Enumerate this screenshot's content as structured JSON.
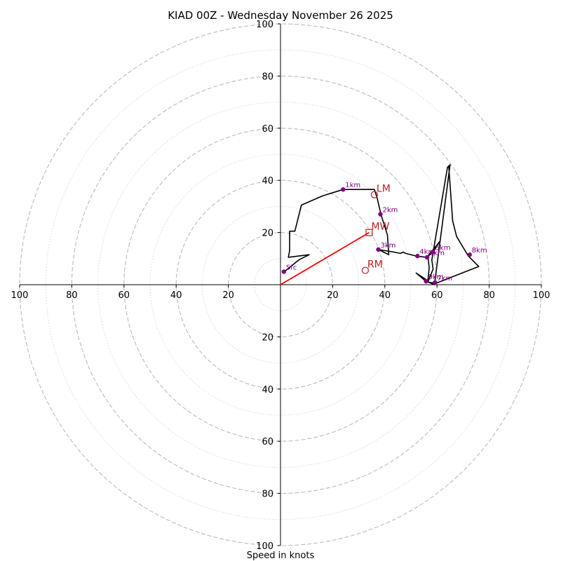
{
  "chart_data": {
    "type": "scatter",
    "subtype": "hodograph",
    "title": "KIAD 00Z - Wednesday November 26 2025",
    "xlabel": "Speed in knots",
    "ylabel": "",
    "xlim": [
      -100,
      100
    ],
    "ylim": [
      -100,
      100
    ],
    "grid": "polar rings",
    "ring_labels": {
      "left": [
        "100",
        "80",
        "60",
        "40",
        "20"
      ],
      "right": [
        "20",
        "40",
        "60",
        "80",
        "100"
      ],
      "up": [
        "20",
        "40",
        "60",
        "80",
        "100"
      ],
      "down": [
        "20",
        "40",
        "60",
        "80",
        "100"
      ]
    },
    "hodograph_trace": [
      [
        1.5,
        5.0
      ],
      [
        7.0,
        9.5
      ],
      [
        11.0,
        11.5
      ],
      [
        3.0,
        10.5
      ],
      [
        3.5,
        13.0
      ],
      [
        3.5,
        20.5
      ],
      [
        5.5,
        20.5
      ],
      [
        8.0,
        30.5
      ],
      [
        16.0,
        34.0
      ],
      [
        24.0,
        36.5
      ],
      [
        36.0,
        36.5
      ],
      [
        37.0,
        33.5
      ],
      [
        38.5,
        27.0
      ],
      [
        41.0,
        19.0
      ],
      [
        41.5,
        11.5
      ],
      [
        38.5,
        13.0
      ],
      [
        37.5,
        13.5
      ],
      [
        43.5,
        12.5
      ],
      [
        46.0,
        12.0
      ],
      [
        47.0,
        12.5
      ],
      [
        48.0,
        12.0
      ],
      [
        52.0,
        11.0
      ],
      [
        56.0,
        10.5
      ],
      [
        58.5,
        12.5
      ],
      [
        61.0,
        16.5
      ],
      [
        56.5,
        11.0
      ],
      [
        57.0,
        6.5
      ],
      [
        56.5,
        1.5
      ],
      [
        52.0,
        4.5
      ],
      [
        55.5,
        1.5
      ],
      [
        59.0,
        0.0
      ],
      [
        65.0,
        46.0
      ],
      [
        64.0,
        45.0
      ],
      [
        58.0,
        9.5
      ],
      [
        58.5,
        6.0
      ],
      [
        56.5,
        1.0
      ],
      [
        59.5,
        0.5
      ],
      [
        76.0,
        7.0
      ],
      [
        72.0,
        11.0
      ],
      [
        67.5,
        18.5
      ],
      [
        66.0,
        24.5
      ],
      [
        64.5,
        45.5
      ]
    ],
    "height_markers": [
      {
        "label": "Sfc",
        "u": 1.3,
        "v": 5.0
      },
      {
        "label": "1km",
        "u": 24.0,
        "v": 36.5
      },
      {
        "label": "2km",
        "u": 38.3,
        "v": 27.0
      },
      {
        "label": "3km",
        "u": 37.5,
        "v": 13.5
      },
      {
        "label": "4km",
        "u": 52.5,
        "v": 11.0
      },
      {
        "label": "5km",
        "u": 58.5,
        "v": 12.5
      },
      {
        "label": "6km",
        "u": 56.2,
        "v": 10.5
      },
      {
        "label": "7km",
        "u": 59.2,
        "v": 0.8
      },
      {
        "label": "8km",
        "u": 72.5,
        "v": 11.5
      },
      {
        "label": "9km",
        "u": 55.8,
        "v": 1.3
      }
    ],
    "motion_markers": [
      {
        "label": "LM",
        "u": 36.0,
        "v": 34.5,
        "shape": "circle"
      },
      {
        "label": "MW",
        "u": 34.0,
        "v": 20.0,
        "shape": "square"
      },
      {
        "label": "RM",
        "u": 32.5,
        "v": 5.5,
        "shape": "circle"
      }
    ],
    "mean_wind_vector": {
      "u": 34.0,
      "v": 20.0
    },
    "colors": {
      "trace": "#000000",
      "height_marker": "#800080",
      "motion": "#b22222",
      "vector": "#ff0000",
      "rings": "#bbbbbb",
      "axes": "#000000"
    }
  }
}
